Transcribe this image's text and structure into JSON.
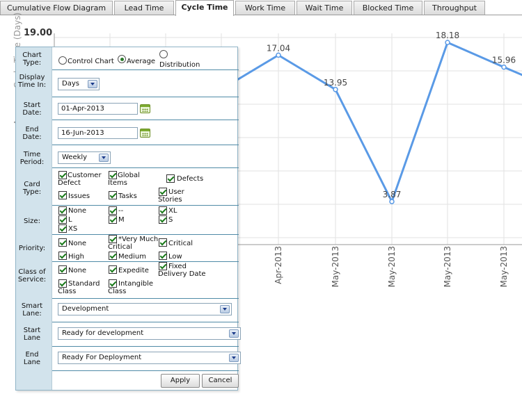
{
  "tabs": [
    {
      "label": "Cumulative Flow Diagram"
    },
    {
      "label": "Lead Time"
    },
    {
      "label": "Cycle Time"
    },
    {
      "label": "Work Time"
    },
    {
      "label": "Wait Time"
    },
    {
      "label": "Blocked Time"
    },
    {
      "label": "Throughput"
    }
  ],
  "active_tab": "Cycle Time",
  "chart_data": {
    "type": "line",
    "ylabel": "Average Cycle Time (Days)",
    "y_top_label": "19.00",
    "categories": [
      "Apr-2013",
      "May-2013",
      "May-2013",
      "May-2013",
      "May-2013"
    ],
    "points": [
      {
        "category": "Apr-2013",
        "value": 17.04,
        "label": "17.04"
      },
      {
        "category": "May-2013",
        "value": 13.95,
        "label": "13.95"
      },
      {
        "category": "May-2013",
        "value": 3.87,
        "label": "3.87"
      },
      {
        "category": "May-2013",
        "value": 18.18,
        "label": "18.18"
      },
      {
        "category": "May-2013",
        "value": 15.96,
        "label": "15.96"
      }
    ],
    "ylim": [
      0,
      19
    ],
    "grid": true,
    "line_color": "#5a9ae6"
  },
  "panel": {
    "chart_type": {
      "label": "Chart Type:",
      "options": [
        "Control Chart",
        "Average",
        "Distribution"
      ],
      "selected": "Average"
    },
    "display_time": {
      "label": "Display Time In:",
      "value": "Days"
    },
    "start_date": {
      "label": "Start Date:",
      "value": "01-Apr-2013"
    },
    "end_date": {
      "label": "End Date:",
      "value": "16-Jun-2013"
    },
    "time_period": {
      "label": "Time Period:",
      "value": "Weekly"
    },
    "card_type": {
      "label": "Card Type:",
      "options": [
        "Customer Defect",
        "Global Items",
        "Defects",
        "Issues",
        "Tasks",
        "User Stories"
      ]
    },
    "size": {
      "label": "Size:",
      "options": [
        "None",
        "--",
        "XL",
        "L",
        "M",
        "S",
        "XS"
      ]
    },
    "priority": {
      "label": "Priority:",
      "options": [
        "None",
        "*Very Much Critical",
        "Critical",
        "High",
        "Medium",
        "Low"
      ]
    },
    "class_of_service": {
      "label": "Class of Service:",
      "options": [
        "None",
        "Expedite",
        "Fixed Delivery Date",
        "Standard Class",
        "Intangible Class"
      ]
    },
    "smart_lane": {
      "label": "Smart Lane:",
      "value": "Development"
    },
    "start_lane": {
      "label": "Start Lane",
      "value": "Ready for development"
    },
    "end_lane": {
      "label": "End Lane",
      "value": "Ready For Deployment"
    },
    "apply_label": "Apply",
    "cancel_label": "Cancel"
  }
}
